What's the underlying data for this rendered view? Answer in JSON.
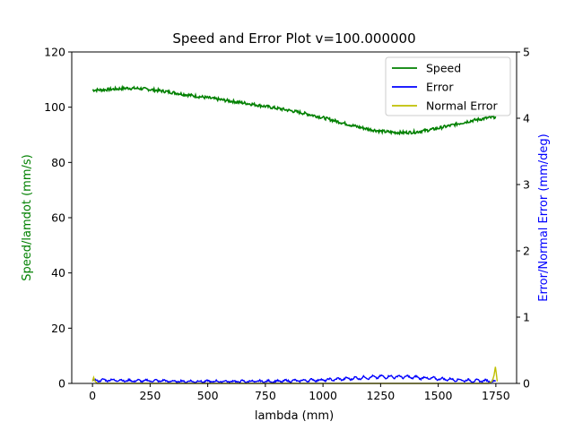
{
  "chart_data": {
    "type": "line",
    "title": "Speed and Error Plot v=100.000000",
    "xlabel": "lambda (mm)",
    "ylabel_left": "Speed/lamdot (mm/s)",
    "ylabel_right": "Error/Normal Error (mm/deg)",
    "xlim": [
      -90,
      1840
    ],
    "ylim_left": [
      0,
      120
    ],
    "ylim_right": [
      0,
      5
    ],
    "x_ticks": [
      0,
      250,
      500,
      750,
      1000,
      1250,
      1500,
      1750
    ],
    "x_tick_labels": [
      "0",
      "250",
      "500",
      "750",
      "1000",
      "1250",
      "1500",
      "1750"
    ],
    "y_left_ticks": [
      0,
      20,
      40,
      60,
      80,
      100,
      120
    ],
    "y_left_tick_labels": [
      "0",
      "20",
      "40",
      "60",
      "80",
      "100",
      "120"
    ],
    "y_right_ticks": [
      0,
      1,
      2,
      3,
      4,
      5
    ],
    "y_right_tick_labels": [
      "0",
      "1",
      "2",
      "3",
      "4",
      "5"
    ],
    "grid": false,
    "legend_position": "top-right",
    "colors": {
      "speed": "#008000",
      "error": "#0000ff",
      "normal_error": "#bfbf00",
      "left_axis_label": "#008000",
      "right_axis_label": "#0000ff"
    },
    "series": [
      {
        "name": "Speed",
        "axis": "left",
        "x": [
          0,
          50,
          100,
          150,
          200,
          250,
          300,
          350,
          400,
          450,
          500,
          550,
          600,
          650,
          700,
          750,
          800,
          850,
          900,
          950,
          1000,
          1050,
          1100,
          1150,
          1200,
          1250,
          1300,
          1350,
          1400,
          1450,
          1500,
          1550,
          1600,
          1650,
          1700,
          1750
        ],
        "y": [
          106.2,
          106.3,
          106.6,
          106.9,
          106.8,
          106.4,
          105.9,
          105.3,
          104.6,
          104.0,
          103.4,
          102.8,
          102.2,
          101.6,
          101.0,
          100.3,
          99.6,
          98.9,
          98.1,
          97.2,
          96.2,
          95.1,
          94.0,
          92.9,
          92.0,
          91.3,
          90.9,
          90.8,
          91.0,
          91.6,
          92.4,
          93.3,
          94.3,
          95.2,
          95.9,
          96.5
        ]
      },
      {
        "name": "Error",
        "axis": "right",
        "x": [
          0,
          50,
          100,
          150,
          200,
          250,
          300,
          350,
          400,
          450,
          500,
          550,
          600,
          650,
          700,
          750,
          800,
          850,
          900,
          950,
          1000,
          1050,
          1100,
          1150,
          1200,
          1250,
          1300,
          1350,
          1400,
          1450,
          1500,
          1550,
          1600,
          1650,
          1700,
          1750
        ],
        "y": [
          0.04,
          0.05,
          0.05,
          0.04,
          0.04,
          0.04,
          0.04,
          0.03,
          0.03,
          0.03,
          0.03,
          0.03,
          0.03,
          0.03,
          0.03,
          0.03,
          0.03,
          0.04,
          0.04,
          0.05,
          0.05,
          0.06,
          0.07,
          0.08,
          0.09,
          0.1,
          0.1,
          0.1,
          0.09,
          0.08,
          0.07,
          0.06,
          0.05,
          0.04,
          0.04,
          0.03
        ]
      },
      {
        "name": "Normal Error",
        "axis": "right",
        "x": [
          0,
          5,
          10,
          20,
          40,
          100,
          400,
          800,
          1200,
          1600,
          1720,
          1735,
          1742,
          1748,
          1752,
          1756
        ],
        "y": [
          0.03,
          0.09,
          0.04,
          0.0,
          0.0,
          0.0,
          0.0,
          0.0,
          0.0,
          0.0,
          0.0,
          0.04,
          0.12,
          0.25,
          0.15,
          0.03
        ]
      }
    ]
  }
}
